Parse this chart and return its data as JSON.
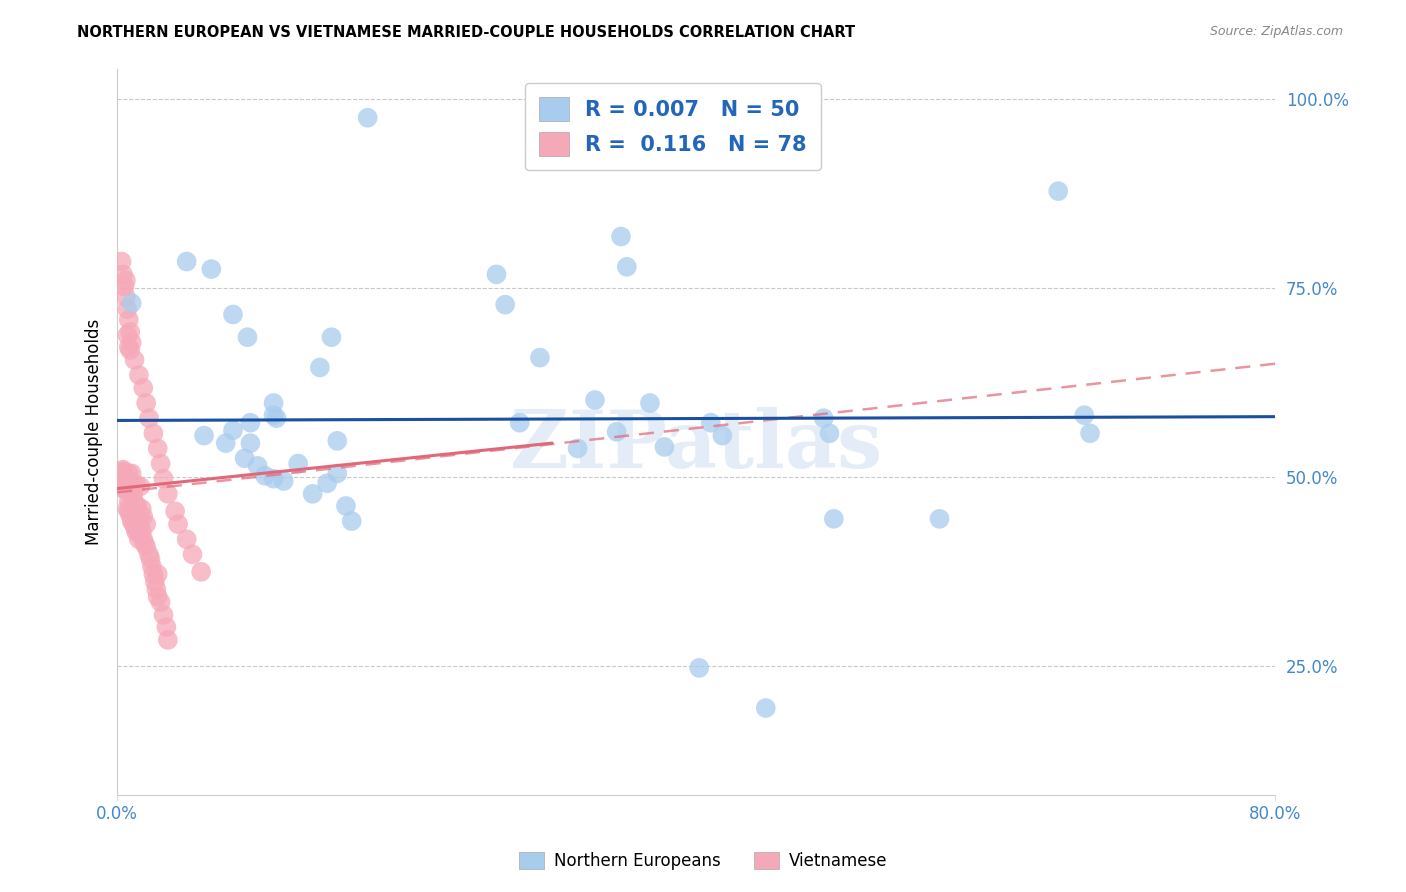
{
  "title": "NORTHERN EUROPEAN VS VIETNAMESE MARRIED-COUPLE HOUSEHOLDS CORRELATION CHART",
  "source": "Source: ZipAtlas.com",
  "xlabel_blue": "Northern Europeans",
  "xlabel_pink": "Vietnamese",
  "ylabel": "Married-couple Households",
  "R_blue": 0.007,
  "N_blue": 50,
  "R_pink": 0.116,
  "N_pink": 78,
  "xlim": [
    0.0,
    0.8
  ],
  "ylim": [
    0.08,
    1.04
  ],
  "xticks": [
    0.0,
    0.2,
    0.4,
    0.6,
    0.8
  ],
  "xtick_labels": [
    "0.0%",
    "",
    "",
    "",
    "80.0%"
  ],
  "yticks": [
    0.25,
    0.5,
    0.75,
    1.0
  ],
  "ytick_labels": [
    "25.0%",
    "50.0%",
    "75.0%",
    "100.0%"
  ],
  "blue_color": "#A8CCEE",
  "pink_color": "#F5A8B8",
  "blue_line_color": "#1A50A0",
  "pink_line_color": "#E06878",
  "watermark": "ZIPatlas",
  "blue_line_y0": 0.575,
  "blue_line_y1": 0.58,
  "pink_line_y0": 0.48,
  "pink_line_y1": 0.65,
  "blue_x": [
    0.173,
    0.01,
    0.048,
    0.065,
    0.09,
    0.08,
    0.148,
    0.14,
    0.108,
    0.11,
    0.092,
    0.108,
    0.152,
    0.262,
    0.268,
    0.292,
    0.33,
    0.348,
    0.352,
    0.368,
    0.278,
    0.318,
    0.345,
    0.378,
    0.41,
    0.418,
    0.488,
    0.492,
    0.495,
    0.568,
    0.65,
    0.668,
    0.672,
    0.06,
    0.075,
    0.08,
    0.088,
    0.092,
    0.097,
    0.102,
    0.108,
    0.115,
    0.125,
    0.135,
    0.145,
    0.152,
    0.158,
    0.162,
    0.402,
    0.448
  ],
  "blue_y": [
    0.975,
    0.73,
    0.785,
    0.775,
    0.685,
    0.715,
    0.685,
    0.645,
    0.598,
    0.578,
    0.572,
    0.582,
    0.548,
    0.768,
    0.728,
    0.658,
    0.602,
    0.818,
    0.778,
    0.598,
    0.572,
    0.538,
    0.56,
    0.54,
    0.572,
    0.555,
    0.578,
    0.558,
    0.445,
    0.445,
    0.878,
    0.582,
    0.558,
    0.555,
    0.545,
    0.562,
    0.525,
    0.545,
    0.515,
    0.502,
    0.498,
    0.495,
    0.518,
    0.478,
    0.492,
    0.505,
    0.462,
    0.442,
    0.248,
    0.195
  ],
  "pink_x": [
    0.004,
    0.004,
    0.005,
    0.006,
    0.006,
    0.007,
    0.007,
    0.007,
    0.008,
    0.008,
    0.008,
    0.008,
    0.009,
    0.009,
    0.01,
    0.01,
    0.01,
    0.01,
    0.011,
    0.011,
    0.012,
    0.012,
    0.013,
    0.013,
    0.013,
    0.014,
    0.014,
    0.015,
    0.015,
    0.016,
    0.016,
    0.017,
    0.017,
    0.018,
    0.018,
    0.019,
    0.02,
    0.02,
    0.022,
    0.023,
    0.024,
    0.025,
    0.026,
    0.027,
    0.028,
    0.028,
    0.03,
    0.032,
    0.034,
    0.035,
    0.003,
    0.003,
    0.004,
    0.004,
    0.005,
    0.005,
    0.006,
    0.006,
    0.007,
    0.008,
    0.008,
    0.009,
    0.01,
    0.012,
    0.015,
    0.018,
    0.02,
    0.022,
    0.025,
    0.028,
    0.03,
    0.032,
    0.035,
    0.04,
    0.042,
    0.048,
    0.052,
    0.058
  ],
  "pink_y": [
    0.498,
    0.508,
    0.485,
    0.76,
    0.495,
    0.688,
    0.458,
    0.492,
    0.455,
    0.672,
    0.495,
    0.505,
    0.45,
    0.668,
    0.442,
    0.462,
    0.492,
    0.505,
    0.44,
    0.475,
    0.435,
    0.465,
    0.428,
    0.458,
    0.49,
    0.43,
    0.462,
    0.418,
    0.448,
    0.488,
    0.435,
    0.428,
    0.458,
    0.418,
    0.448,
    0.412,
    0.408,
    0.438,
    0.398,
    0.392,
    0.382,
    0.372,
    0.362,
    0.352,
    0.342,
    0.372,
    0.335,
    0.318,
    0.302,
    0.285,
    0.505,
    0.785,
    0.768,
    0.51,
    0.752,
    0.488,
    0.738,
    0.482,
    0.722,
    0.708,
    0.468,
    0.692,
    0.678,
    0.655,
    0.635,
    0.618,
    0.598,
    0.578,
    0.558,
    0.538,
    0.518,
    0.498,
    0.478,
    0.455,
    0.438,
    0.418,
    0.398,
    0.375
  ]
}
